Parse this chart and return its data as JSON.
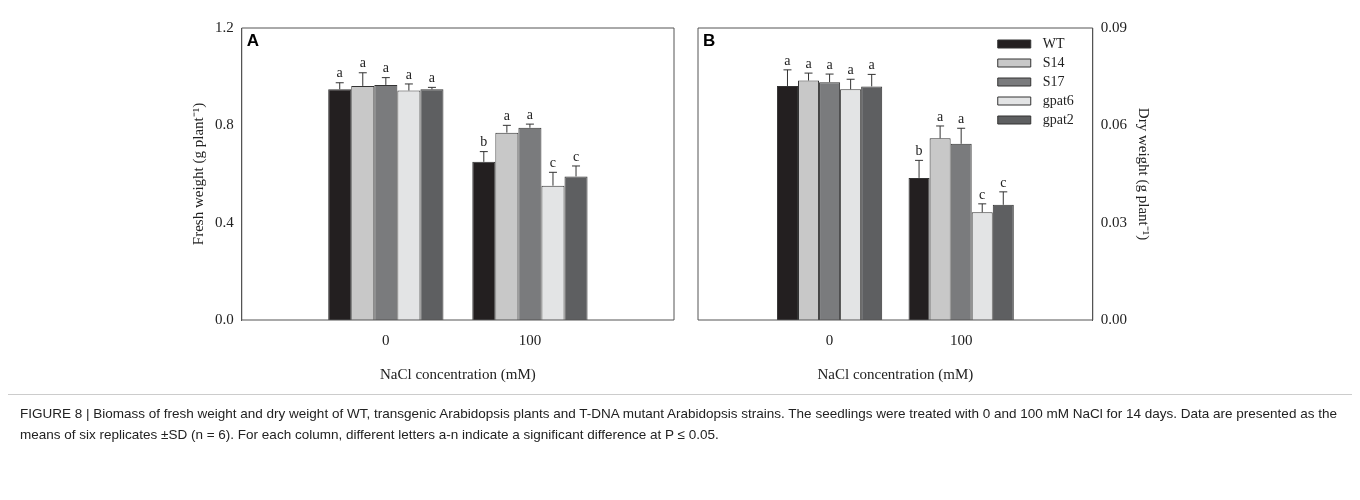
{
  "chart_data": [
    {
      "type": "bar",
      "title": "A",
      "xlabel": "NaCl concentration (mM)",
      "ylabel": "Fresh weight (g plant⁻¹)",
      "categories": [
        "0",
        "100"
      ],
      "ylim": [
        0,
        1.2
      ],
      "yticks": [
        {
          "value": 0,
          "label": "0.0"
        },
        0.4,
        0.8,
        1.2
      ],
      "grid": false,
      "legend": false,
      "series": [
        {
          "color": "#231f20",
          "values": [
            0.948,
            0.65
          ],
          "errors": [
            0.027,
            0.042
          ],
          "value_labels": [
            "a",
            "b"
          ]
        },
        {
          "color": "#c8c8c8",
          "values": [
            0.962,
            0.77
          ],
          "errors": [
            0.054,
            0.03
          ],
          "value_labels": [
            "a",
            "a"
          ]
        },
        {
          "color": "#7a7b7d",
          "values": [
            0.966,
            0.79
          ],
          "errors": [
            0.03,
            0.015
          ],
          "value_labels": [
            "a",
            "a"
          ]
        },
        {
          "color": "#e3e4e5",
          "values": [
            0.943,
            0.552
          ],
          "errors": [
            0.027,
            0.055
          ],
          "value_labels": [
            "a",
            "c"
          ]
        },
        {
          "color": "#5e5f61",
          "values": [
            0.948,
            0.59
          ],
          "errors": [
            0.008,
            0.043
          ],
          "value_labels": [
            "a",
            "c"
          ]
        }
      ],
      "annotations": [
        "FIGURE 8 | Biomass of fresh weight and dry weight of WT, transgenic Arabidopsis plants and T-DNA mutant Arabidopsis strains. The seedlings were treated with 0 and 100 mM NaCl for 14 days. Data are presented as the means of six replicates ±SD (n = 6). For each column, different letters a-n indicate a significant difference at P ≤ 0.05."
      ]
    },
    {
      "type": "bar",
      "title": "B",
      "xlabel": "NaCl concentration (mM)",
      "y2label": "Dry weight (g plant⁻¹)",
      "categories": [
        "0",
        "100"
      ],
      "y2lim": [
        0,
        0.09
      ],
      "y2ticks": [
        {
          "value": 0,
          "label": "0.00"
        },
        0.03,
        0.06,
        0.09
      ],
      "grid": false,
      "legend": "top right",
      "series": [
        {
          "name": "WT",
          "color": "#231f20",
          "axis": "y2",
          "values": [
            0.0721,
            0.0438
          ],
          "errors": [
            0.005,
            0.0054
          ],
          "value_labels": [
            "a",
            "b"
          ]
        },
        {
          "name": "S14",
          "color": "#c8c8c8",
          "axis": "y2",
          "values": [
            0.0738,
            0.056
          ],
          "errors": [
            0.0023,
            0.0038
          ],
          "value_labels": [
            "a",
            "a"
          ]
        },
        {
          "name": "S17",
          "color": "#7a7b7d",
          "axis": "y2",
          "values": [
            0.0733,
            0.0543
          ],
          "errors": [
            0.0025,
            0.0048
          ],
          "value_labels": [
            "a",
            "a"
          ]
        },
        {
          "name": "gpat6",
          "color": "#e3e4e5",
          "axis": "y2",
          "values": [
            0.0711,
            0.0332
          ],
          "errors": [
            0.0031,
            0.0026
          ],
          "value_labels": [
            "a",
            "c"
          ]
        },
        {
          "name": "gpat2",
          "color": "#5e5f61",
          "axis": "y2",
          "values": [
            0.072,
            0.0355
          ],
          "errors": [
            0.0037,
            0.004
          ],
          "value_labels": [
            "a",
            "c"
          ]
        }
      ]
    }
  ]
}
